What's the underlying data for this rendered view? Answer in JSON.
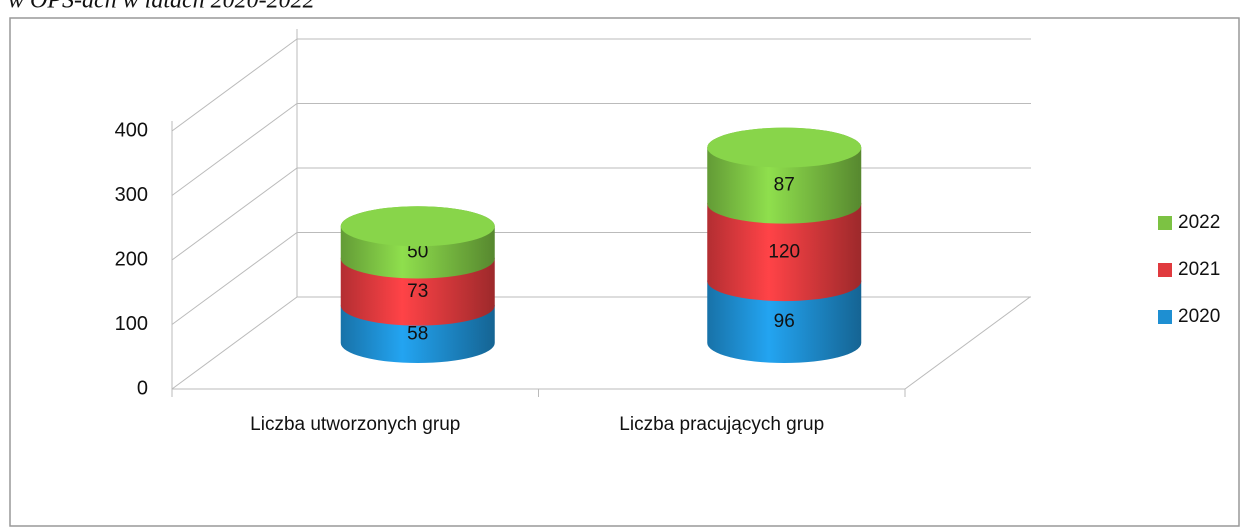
{
  "chart_data": {
    "type": "bar",
    "stacked": true,
    "title": "w OPS-ach w latach 2020-2022",
    "categories": [
      "Liczba utworzonych grup",
      "Liczba pracujących grup"
    ],
    "series": [
      {
        "name": "2020",
        "color": "#1e8fd2",
        "values": [
          58,
          96
        ]
      },
      {
        "name": "2021",
        "color": "#e03a3e",
        "values": [
          73,
          120
        ]
      },
      {
        "name": "2022",
        "color": "#7cc243",
        "values": [
          50,
          87
        ]
      }
    ],
    "ylim": [
      0,
      400
    ],
    "yticks": [
      0,
      100,
      200,
      300,
      400
    ],
    "grid": true,
    "legend": "right"
  }
}
